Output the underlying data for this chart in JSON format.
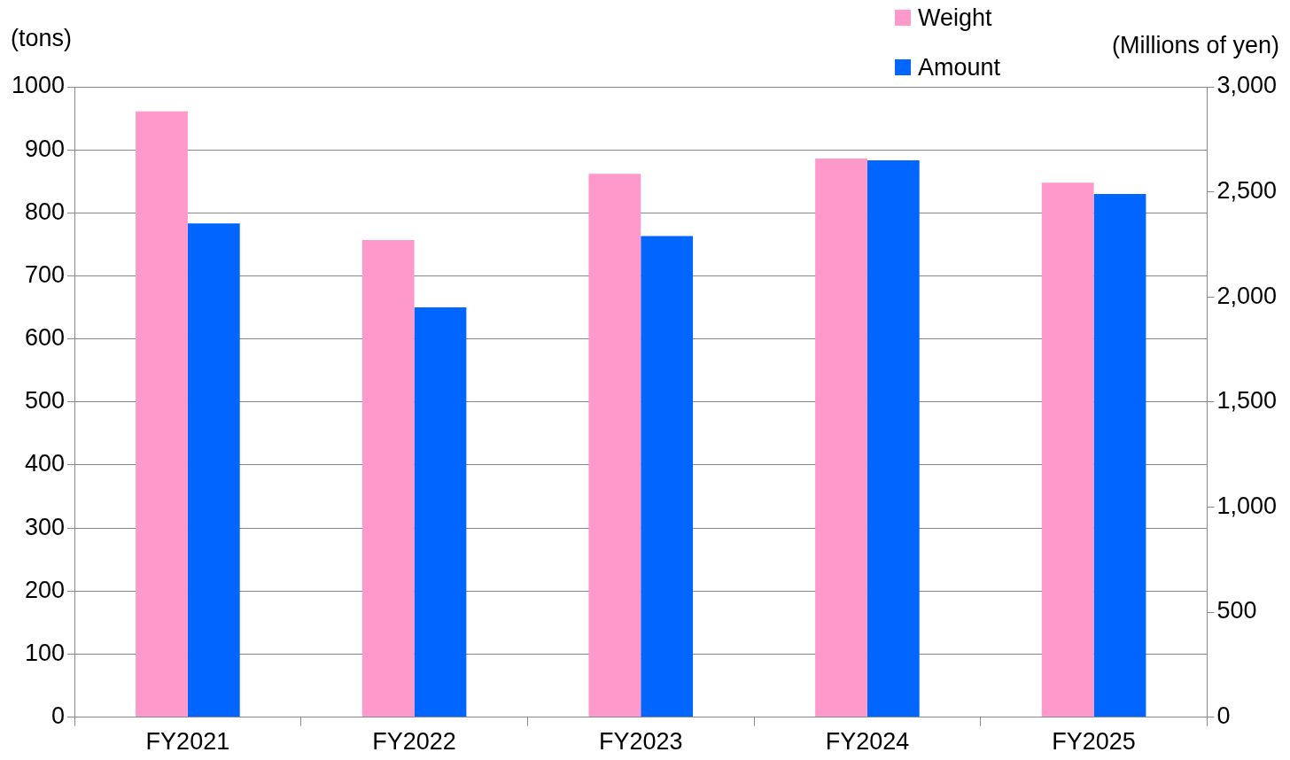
{
  "chart_data": {
    "type": "bar",
    "ylabel": "(tons)",
    "y2label": "(Millions of yen)",
    "categories": [
      "FY2021",
      "FY2022",
      "FY2023",
      "FY2024",
      "FY2025"
    ],
    "series": [
      {
        "name": "Weight",
        "color": "#ff99cc",
        "values": [
          961,
          757,
          862,
          886,
          848
        ]
      },
      {
        "name": "Amount",
        "color": "#0066ff",
        "axis": "y2",
        "values": [
          2350,
          1950,
          2290,
          2650,
          2490
        ]
      }
    ],
    "ylim": [
      0,
      1000
    ],
    "yticks": [
      0,
      100,
      200,
      300,
      400,
      500,
      600,
      700,
      800,
      900,
      1000
    ],
    "y2lim": [
      0,
      3000
    ],
    "y2ticks": [
      0,
      {
        "value": 500,
        "label": "500"
      },
      {
        "value": 1000,
        "label": "1,000"
      },
      {
        "value": 1500,
        "label": "1,500"
      },
      {
        "value": 2000,
        "label": "2,000"
      },
      {
        "value": 2500,
        "label": "2,500"
      },
      {
        "value": 3000,
        "label": "3,000"
      }
    ],
    "grid": "y",
    "legend": "top right"
  }
}
